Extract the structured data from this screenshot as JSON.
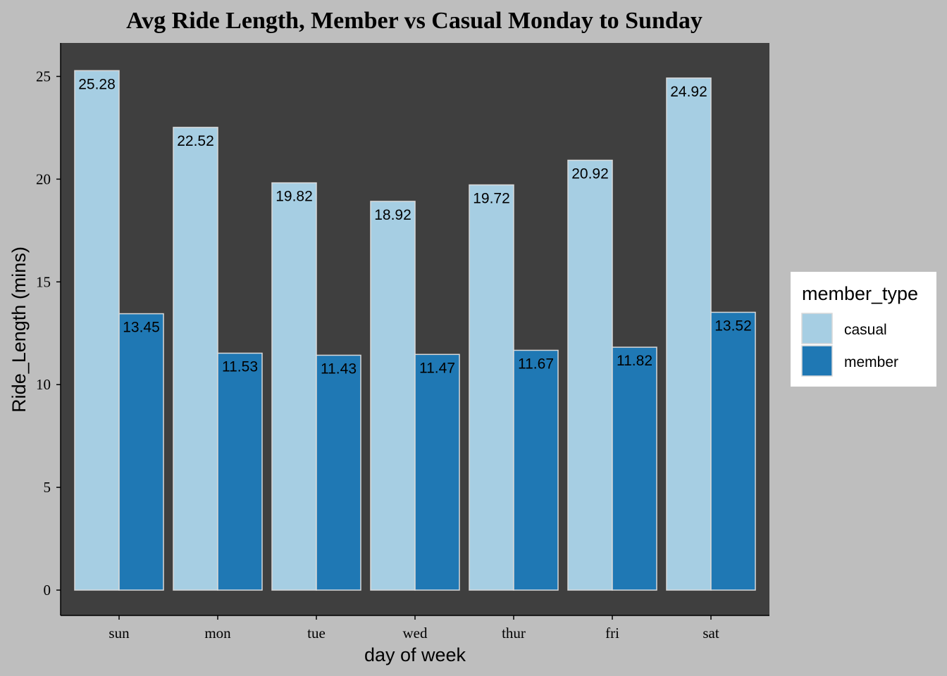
{
  "chart_data": {
    "type": "bar",
    "title": "Avg Ride Length, Member vs Casual Monday to Sunday",
    "xlabel": "day of week",
    "ylabel": "Ride_Length (mins)",
    "categories": [
      "sun",
      "mon",
      "tue",
      "wed",
      "thur",
      "fri",
      "sat"
    ],
    "series": [
      {
        "name": "casual",
        "color": "#a6cee3",
        "values": [
          25.28,
          22.52,
          19.82,
          18.92,
          19.72,
          20.92,
          24.92
        ]
      },
      {
        "name": "member",
        "color": "#1f78b4",
        "values": [
          13.45,
          11.53,
          11.43,
          11.47,
          11.67,
          11.82,
          13.52
        ]
      }
    ],
    "data_labels": [
      [
        "25.28",
        "22.52",
        "19.82",
        "18.92",
        "19.72",
        "20.92",
        "24.92"
      ],
      [
        "13.45",
        "11.53",
        "11.43",
        "11.47",
        "11.67",
        "11.82",
        "13.52"
      ]
    ],
    "yticks": [
      "0",
      "5",
      "10",
      "15",
      "20",
      "25"
    ],
    "ylim": [
      0,
      26.5
    ],
    "grid": false,
    "legend": {
      "title": "member_type",
      "placement": "right"
    },
    "colors": {
      "page_background": "#bebebe",
      "panel_background": "#3f3f3f",
      "legend_background": "#ffffff",
      "bar_outline": "#d9d9d9"
    }
  }
}
